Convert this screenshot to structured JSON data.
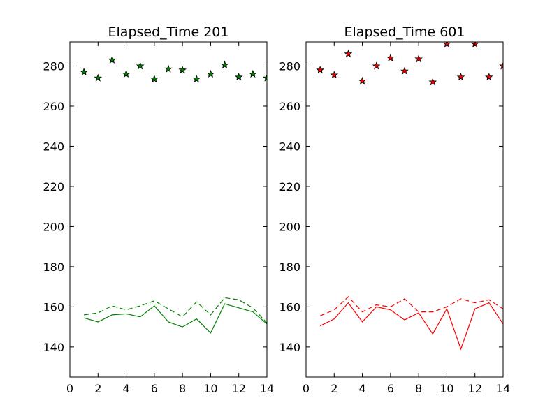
{
  "chart_data": [
    {
      "type": "line",
      "title": "Elapsed_Time 201",
      "xlabel": "",
      "ylabel": "",
      "xlim": [
        0,
        14
      ],
      "ylim": [
        125,
        292
      ],
      "xticks": [
        0,
        2,
        4,
        6,
        8,
        10,
        12,
        14
      ],
      "yticks": [
        140,
        160,
        180,
        200,
        220,
        240,
        260,
        280
      ],
      "grid": false,
      "color": "#008000",
      "marker_fill": "#008000",
      "series": [
        {
          "style": "star-markers",
          "x": [
            1,
            2,
            3,
            4,
            5,
            6,
            7,
            8,
            9,
            10,
            11,
            12,
            13,
            14
          ],
          "values": [
            277,
            274,
            283,
            276,
            280,
            273.5,
            278.5,
            278,
            273.5,
            276,
            280.5,
            274.5,
            276,
            274
          ]
        },
        {
          "style": "dashed",
          "x": [
            1,
            2,
            3,
            4,
            5,
            6,
            7,
            8,
            9,
            10,
            11,
            12,
            13,
            14
          ],
          "values": [
            156,
            157,
            160.5,
            158.5,
            160.5,
            163,
            159,
            155,
            162.5,
            156,
            164.5,
            163.5,
            159.5,
            152
          ]
        },
        {
          "style": "solid",
          "x": [
            1,
            2,
            3,
            4,
            5,
            6,
            7,
            8,
            9,
            10,
            11,
            12,
            13,
            14
          ],
          "values": [
            154.5,
            152.5,
            156,
            156.5,
            155,
            160.5,
            152.5,
            150,
            154,
            147,
            161.5,
            159.5,
            157.5,
            151.5
          ]
        }
      ]
    },
    {
      "type": "line",
      "title": "Elapsed_Time 601",
      "xlabel": "",
      "ylabel": "",
      "xlim": [
        0,
        14
      ],
      "ylim": [
        125,
        292
      ],
      "xticks": [
        0,
        2,
        4,
        6,
        8,
        10,
        12,
        14
      ],
      "yticks": [
        140,
        160,
        180,
        200,
        220,
        240,
        260,
        280
      ],
      "grid": false,
      "color": "#ff0000",
      "marker_fill": "#ff0000",
      "series": [
        {
          "style": "star-markers",
          "x": [
            1,
            2,
            3,
            4,
            5,
            6,
            7,
            8,
            9,
            10,
            11,
            12,
            13,
            14
          ],
          "values": [
            278,
            275.5,
            286,
            272.5,
            280,
            284,
            277.5,
            283.5,
            272,
            291,
            274.5,
            291,
            274.5,
            280
          ]
        },
        {
          "style": "dashed",
          "x": [
            1,
            2,
            3,
            4,
            5,
            6,
            7,
            8,
            9,
            10,
            11,
            12,
            13,
            14
          ],
          "values": [
            155.5,
            158.5,
            165,
            157.5,
            161,
            160,
            164,
            157.5,
            157.5,
            160,
            164,
            162,
            163.5,
            159
          ]
        },
        {
          "style": "solid",
          "x": [
            1,
            2,
            3,
            4,
            5,
            6,
            7,
            8,
            9,
            10,
            11,
            12,
            13,
            14
          ],
          "values": [
            150.5,
            154,
            162,
            152.5,
            160,
            158.5,
            153.5,
            157,
            146.5,
            159,
            139,
            159,
            162,
            151.5
          ]
        }
      ]
    }
  ]
}
